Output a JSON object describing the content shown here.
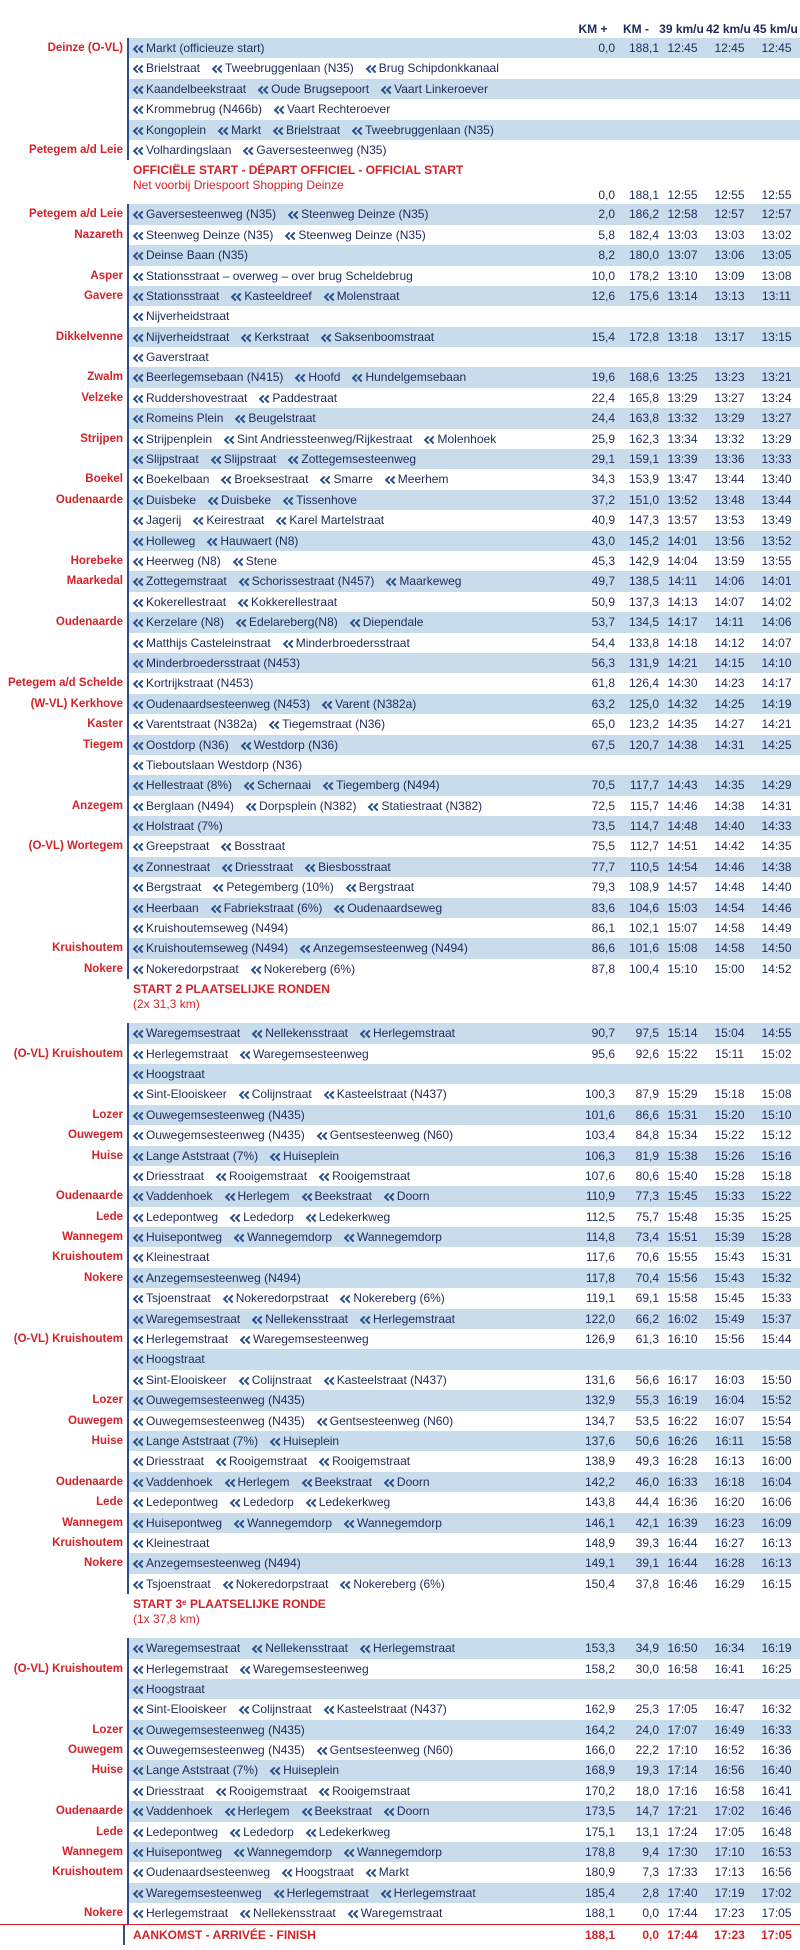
{
  "header": {
    "columns": [
      "KM +",
      "KM -",
      "39 km/u",
      "42 km/u",
      "45 km/u"
    ]
  },
  "rows": [
    {
      "place": "Deinze (O-VL)",
      "streets": [
        "Markt (officieuze start)"
      ],
      "km": [
        "0,0",
        "188,1",
        "12:45",
        "12:45",
        "12:45"
      ]
    },
    {
      "streets": [
        "Brielstraat",
        "Tweebruggenlaan (N35)",
        "Brug Schipdonkkanaal"
      ]
    },
    {
      "streets": [
        "Kaandelbeekstraat",
        "Oude Brugsepoort",
        "Vaart Linkeroever"
      ]
    },
    {
      "streets": [
        "Krommebrug (N466b)",
        "Vaart Rechteroever"
      ]
    },
    {
      "streets": [
        "Kongoplein",
        "Markt",
        "Brielstraat",
        "Tweebruggenlaan (N35)"
      ]
    },
    {
      "place": "Petegem a/d Leie",
      "streets": [
        "Volhardingslaan",
        "Gaversesteenweg (N35)"
      ]
    },
    {
      "kind": "note",
      "title": "OFFICIËLE START - DÉPART OFFICIEL - OFFICIAL START",
      "subtitle": "Net voorbij Driespoort Shopping Deinze",
      "km": [
        "0,0",
        "188,1",
        "12:55",
        "12:55",
        "12:55"
      ]
    },
    {
      "place": "Petegem a/d Leie",
      "streets": [
        "Gaversesteenweg (N35)",
        "Steenweg Deinze (N35)"
      ],
      "km": [
        "2,0",
        "186,2",
        "12:58",
        "12:57",
        "12:57"
      ]
    },
    {
      "place": "Nazareth",
      "streets": [
        "Steenweg Deinze (N35)",
        "Steenweg Deinze (N35)"
      ],
      "km": [
        "5,8",
        "182,4",
        "13:03",
        "13:03",
        "13:02"
      ]
    },
    {
      "streets": [
        "Deinse Baan (N35)"
      ],
      "km": [
        "8,2",
        "180,0",
        "13:07",
        "13:06",
        "13:05"
      ]
    },
    {
      "place": "Asper",
      "streets": [
        "Stationsstraat – overweg – over brug Scheldebrug"
      ],
      "km": [
        "10,0",
        "178,2",
        "13:10",
        "13:09",
        "13:08"
      ]
    },
    {
      "place": "Gavere",
      "streets": [
        "Stationsstraat",
        "Kasteeldreef",
        "Molenstraat"
      ],
      "km": [
        "12,6",
        "175,6",
        "13:14",
        "13:13",
        "13:11"
      ]
    },
    {
      "streets": [
        "Nijverheidstraat"
      ]
    },
    {
      "place": "Dikkelvenne",
      "streets": [
        "Nijverheidstraat",
        "Kerkstraat",
        "Saksenboomstraat"
      ],
      "km": [
        "15,4",
        "172,8",
        "13:18",
        "13:17",
        "13:15"
      ]
    },
    {
      "streets": [
        "Gaverstraat"
      ]
    },
    {
      "place": "Zwalm",
      "streets": [
        "Beerlegemsebaan (N415)",
        "Hoofd",
        "Hundelgemsebaan"
      ],
      "km": [
        "19,6",
        "168,6",
        "13:25",
        "13:23",
        "13:21"
      ]
    },
    {
      "place": "Velzeke",
      "streets": [
        "Ruddershovestraat",
        "Paddestraat"
      ],
      "km": [
        "22,4",
        "165,8",
        "13:29",
        "13:27",
        "13:24"
      ]
    },
    {
      "streets": [
        "Romeins Plein",
        "Beugelstraat"
      ],
      "km": [
        "24,4",
        "163,8",
        "13:32",
        "13:29",
        "13:27"
      ]
    },
    {
      "place": "Strijpen",
      "streets": [
        "Strijpenplein",
        "Sint Andriessteenweg/Rijkestraat",
        "Molenhoek"
      ],
      "km": [
        "25,9",
        "162,3",
        "13:34",
        "13:32",
        "13:29"
      ]
    },
    {
      "streets": [
        "Slijpstraat",
        "Slijpstraat",
        "Zottegemsesteenweg"
      ],
      "km": [
        "29,1",
        "159,1",
        "13:39",
        "13:36",
        "13:33"
      ]
    },
    {
      "place": "Boekel",
      "streets": [
        "Boekelbaan",
        "Broeksestraat",
        "Smarre",
        "Meerhem"
      ],
      "km": [
        "34,3",
        "153,9",
        "13:47",
        "13:44",
        "13:40"
      ]
    },
    {
      "place": "Oudenaarde",
      "streets": [
        "Duisbeke",
        "Duisbeke",
        "Tissenhove"
      ],
      "km": [
        "37,2",
        "151,0",
        "13:52",
        "13:48",
        "13:44"
      ]
    },
    {
      "streets": [
        "Jagerij",
        "Keirestraat",
        "Karel Martelstraat"
      ],
      "km": [
        "40,9",
        "147,3",
        "13:57",
        "13:53",
        "13:49"
      ]
    },
    {
      "streets": [
        "Holleweg",
        "Hauwaert (N8)"
      ],
      "km": [
        "43,0",
        "145,2",
        "14:01",
        "13:56",
        "13:52"
      ]
    },
    {
      "place": "Horebeke",
      "streets": [
        "Heerweg (N8)",
        "Stene"
      ],
      "km": [
        "45,3",
        "142,9",
        "14:04",
        "13:59",
        "13:55"
      ]
    },
    {
      "place": "Maarkedal",
      "streets": [
        "Zottegemstraat",
        "Schorissestraat (N457)",
        "Maarkeweg"
      ],
      "km": [
        "49,7",
        "138,5",
        "14:11",
        "14:06",
        "14:01"
      ]
    },
    {
      "streets": [
        "Kokerellestraat",
        "Kokkerellestraat"
      ],
      "km": [
        "50,9",
        "137,3",
        "14:13",
        "14:07",
        "14:02"
      ]
    },
    {
      "place": "Oudenaarde",
      "streets": [
        "Kerzelare (N8)",
        "Edelareberg(N8)",
        "Diependale"
      ],
      "km": [
        "53,7",
        "134,5",
        "14:17",
        "14:11",
        "14:06"
      ]
    },
    {
      "streets": [
        "Matthijs Casteleinstraat",
        "Minderbroedersstraat"
      ],
      "km": [
        "54,4",
        "133,8",
        "14:18",
        "14:12",
        "14:07"
      ]
    },
    {
      "streets": [
        "Minderbroedersstraat (N453)"
      ],
      "km": [
        "56,3",
        "131,9",
        "14:21",
        "14:15",
        "14:10"
      ]
    },
    {
      "place": "Petegem a/d Schelde",
      "streets": [
        "Kortrijkstraat (N453)"
      ],
      "km": [
        "61,8",
        "126,4",
        "14:30",
        "14:23",
        "14:17"
      ]
    },
    {
      "place": "(W-VL) Kerkhove",
      "streets": [
        "Oudenaardsesteenweg (N453)",
        "Varent (N382a)"
      ],
      "km": [
        "63,2",
        "125,0",
        "14:32",
        "14:25",
        "14:19"
      ]
    },
    {
      "place": "Kaster",
      "streets": [
        "Varentstraat (N382a)",
        "Tiegemstraat (N36)"
      ],
      "km": [
        "65,0",
        "123,2",
        "14:35",
        "14:27",
        "14:21"
      ]
    },
    {
      "place": "Tiegem",
      "streets": [
        "Oostdorp (N36)",
        "Westdorp (N36)"
      ],
      "km": [
        "67,5",
        "120,7",
        "14:38",
        "14:31",
        "14:25"
      ]
    },
    {
      "streets": [
        "Tieboutslaan Westdorp (N36)"
      ]
    },
    {
      "streets": [
        "Hellestraat (8%)",
        "Schernaai",
        "Tiegemberg (N494)"
      ],
      "km": [
        "70,5",
        "117,7",
        "14:43",
        "14:35",
        "14:29"
      ]
    },
    {
      "place": "Anzegem",
      "streets": [
        "Berglaan (N494)",
        "Dorpsplein (N382)",
        "Statiestraat (N382)"
      ],
      "km": [
        "72,5",
        "115,7",
        "14:46",
        "14:38",
        "14:31"
      ]
    },
    {
      "streets": [
        "Holstraat (7%)"
      ],
      "km": [
        "73,5",
        "114,7",
        "14:48",
        "14:40",
        "14:33"
      ]
    },
    {
      "place": "(O-VL) Wortegem",
      "streets": [
        "Greepstraat",
        "Bosstraat"
      ],
      "km": [
        "75,5",
        "112,7",
        "14:51",
        "14:42",
        "14:35"
      ]
    },
    {
      "streets": [
        "Zonnestraat",
        "Driesstraat",
        "Biesbosstraat"
      ],
      "km": [
        "77,7",
        "110,5",
        "14:54",
        "14:46",
        "14:38"
      ]
    },
    {
      "streets": [
        "Bergstraat",
        "Petegemberg (10%)",
        "Bergstraat"
      ],
      "km": [
        "79,3",
        "108,9",
        "14:57",
        "14:48",
        "14:40"
      ]
    },
    {
      "streets": [
        "Heerbaan",
        "Fabriekstraat (6%)",
        "Oudenaardseweg"
      ],
      "km": [
        "83,6",
        "104,6",
        "15:03",
        "14:54",
        "14:46"
      ]
    },
    {
      "streets": [
        "Kruishoutemseweg (N494)"
      ],
      "km": [
        "86,1",
        "102,1",
        "15:07",
        "14:58",
        "14:49"
      ]
    },
    {
      "place": "Kruishoutem",
      "streets": [
        "Kruishoutemseweg (N494)",
        "Anzegemsesteenweg (N494)"
      ],
      "km": [
        "86,6",
        "101,6",
        "15:08",
        "14:58",
        "14:50"
      ]
    },
    {
      "place": "Nokere",
      "streets": [
        "Nokeredorpstraat",
        "Nokereberg (6%)"
      ],
      "km": [
        "87,8",
        "100,4",
        "15:10",
        "15:00",
        "14:52"
      ]
    },
    {
      "kind": "note",
      "title": "START 2 PLAATSELIJKE RONDEN",
      "subtitle": "(2x 31,3 km)"
    },
    {
      "streets": [
        "Waregemsestraat",
        "Nellekensstraat",
        "Herlegemstraat"
      ],
      "km": [
        "90,7",
        "97,5",
        "15:14",
        "15:04",
        "14:55"
      ]
    },
    {
      "place": "(O-VL) Kruishoutem",
      "streets": [
        "Herlegemstraat",
        "Waregemsesteenweg"
      ],
      "km": [
        "95,6",
        "92,6",
        "15:22",
        "15:11",
        "15:02"
      ]
    },
    {
      "streets": [
        "Hoogstraat"
      ]
    },
    {
      "streets": [
        "Sint-Elooiskeer",
        "Colijnstraat",
        "Kasteelstraat (N437)"
      ],
      "km": [
        "100,3",
        "87,9",
        "15:29",
        "15:18",
        "15:08"
      ]
    },
    {
      "place": "Lozer",
      "streets": [
        "Ouwegemsesteenweg (N435)"
      ],
      "km": [
        "101,6",
        "86,6",
        "15:31",
        "15:20",
        "15:10"
      ]
    },
    {
      "place": "Ouwegem",
      "streets": [
        "Ouwegemsesteenweg (N435)",
        "Gentsesteenweg (N60)"
      ],
      "km": [
        "103,4",
        "84,8",
        "15:34",
        "15:22",
        "15:12"
      ]
    },
    {
      "place": "Huise",
      "streets": [
        "Lange Aststraat (7%)",
        "Huiseplein"
      ],
      "km": [
        "106,3",
        "81,9",
        "15:38",
        "15:26",
        "15:16"
      ]
    },
    {
      "streets": [
        "Driesstraat",
        "Rooigemstraat",
        "Rooigemstraat"
      ],
      "km": [
        "107,6",
        "80,6",
        "15:40",
        "15:28",
        "15:18"
      ]
    },
    {
      "place": "Oudenaarde",
      "streets": [
        "Vaddenhoek",
        "Herlegem",
        "Beekstraat",
        "Doorn"
      ],
      "km": [
        "110,9",
        "77,3",
        "15:45",
        "15:33",
        "15:22"
      ]
    },
    {
      "place": "Lede",
      "streets": [
        "Ledepontweg",
        "Lededorp",
        "Ledekerkweg"
      ],
      "km": [
        "112,5",
        "75,7",
        "15:48",
        "15:35",
        "15:25"
      ]
    },
    {
      "place": "Wannegem",
      "streets": [
        "Huisepontweg",
        "Wannegemdorp",
        "Wannegemdorp"
      ],
      "km": [
        "114,8",
        "73,4",
        "15:51",
        "15:39",
        "15:28"
      ]
    },
    {
      "place": "Kruishoutem",
      "streets": [
        "Kleinestraat"
      ],
      "km": [
        "117,6",
        "70,6",
        "15:55",
        "15:43",
        "15:31"
      ]
    },
    {
      "place": "Nokere",
      "streets": [
        "Anzegemsesteenweg (N494)"
      ],
      "km": [
        "117,8",
        "70,4",
        "15:56",
        "15:43",
        "15:32"
      ]
    },
    {
      "streets": [
        "Tsjoenstraat",
        "Nokeredorpstraat",
        "Nokereberg (6%)"
      ],
      "km": [
        "119,1",
        "69,1",
        "15:58",
        "15:45",
        "15:33"
      ]
    },
    {
      "streets": [
        "Waregemsestraat",
        "Nellekensstraat",
        "Herlegemstraat"
      ],
      "km": [
        "122,0",
        "66,2",
        "16:02",
        "15:49",
        "15:37"
      ]
    },
    {
      "place": "(O-VL) Kruishoutem",
      "streets": [
        "Herlegemstraat",
        "Waregemsesteenweg"
      ],
      "km": [
        "126,9",
        "61,3",
        "16:10",
        "15:56",
        "15:44"
      ]
    },
    {
      "streets": [
        "Hoogstraat"
      ]
    },
    {
      "streets": [
        "Sint-Elooiskeer",
        "Colijnstraat",
        "Kasteelstraat (N437)"
      ],
      "km": [
        "131,6",
        "56,6",
        "16:17",
        "16:03",
        "15:50"
      ]
    },
    {
      "place": "Lozer",
      "streets": [
        "Ouwegemsesteenweg (N435)"
      ],
      "km": [
        "132,9",
        "55,3",
        "16:19",
        "16:04",
        "15:52"
      ]
    },
    {
      "place": "Ouwegem",
      "streets": [
        "Ouwegemsesteenweg (N435)",
        "Gentsesteenweg (N60)"
      ],
      "km": [
        "134,7",
        "53,5",
        "16:22",
        "16:07",
        "15:54"
      ]
    },
    {
      "place": "Huise",
      "streets": [
        "Lange Aststraat (7%)",
        "Huiseplein"
      ],
      "km": [
        "137,6",
        "50,6",
        "16:26",
        "16:11",
        "15:58"
      ]
    },
    {
      "streets": [
        "Driesstraat",
        "Rooigemstraat",
        "Rooigemstraat"
      ],
      "km": [
        "138,9",
        "49,3",
        "16:28",
        "16:13",
        "16:00"
      ]
    },
    {
      "place": "Oudenaarde",
      "streets": [
        "Vaddenhoek",
        "Herlegem",
        "Beekstraat",
        "Doorn"
      ],
      "km": [
        "142,2",
        "46,0",
        "16:33",
        "16:18",
        "16:04"
      ]
    },
    {
      "place": "Lede",
      "streets": [
        "Ledepontweg",
        "Lededorp",
        "Ledekerkweg"
      ],
      "km": [
        "143,8",
        "44,4",
        "16:36",
        "16:20",
        "16:06"
      ]
    },
    {
      "place": "Wannegem",
      "streets": [
        "Huisepontweg",
        "Wannegemdorp",
        "Wannegemdorp"
      ],
      "km": [
        "146,1",
        "42,1",
        "16:39",
        "16:23",
        "16:09"
      ]
    },
    {
      "place": "Kruishoutem",
      "streets": [
        "Kleinestraat"
      ],
      "km": [
        "148,9",
        "39,3",
        "16:44",
        "16:27",
        "16:13"
      ]
    },
    {
      "place": "Nokere",
      "streets": [
        "Anzegemsesteenweg (N494)"
      ],
      "km": [
        "149,1",
        "39,1",
        "16:44",
        "16:28",
        "16:13"
      ]
    },
    {
      "streets": [
        "Tsjoenstraat",
        "Nokeredorpstraat",
        "Nokereberg (6%)"
      ],
      "km": [
        "150,4",
        "37,8",
        "16:46",
        "16:29",
        "16:15"
      ]
    },
    {
      "kind": "note",
      "title": "START 3ᵉ PLAATSELIJKE RONDE",
      "subtitle": "(1x 37,8 km)"
    },
    {
      "streets": [
        "Waregemsestraat",
        "Nellekensstraat",
        "Herlegemstraat"
      ],
      "km": [
        "153,3",
        "34,9",
        "16:50",
        "16:34",
        "16:19"
      ]
    },
    {
      "place": "(O-VL) Kruishoutem",
      "streets": [
        "Herlegemstraat",
        "Waregemsesteenweg"
      ],
      "km": [
        "158,2",
        "30,0",
        "16:58",
        "16:41",
        "16:25"
      ]
    },
    {
      "streets": [
        "Hoogstraat"
      ]
    },
    {
      "streets": [
        "Sint-Elooiskeer",
        "Colijnstraat",
        "Kasteelstraat (N437)"
      ],
      "km": [
        "162,9",
        "25,3",
        "17:05",
        "16:47",
        "16:32"
      ]
    },
    {
      "place": "Lozer",
      "streets": [
        "Ouwegemsesteenweg (N435)"
      ],
      "km": [
        "164,2",
        "24,0",
        "17:07",
        "16:49",
        "16:33"
      ]
    },
    {
      "place": "Ouwegem",
      "streets": [
        "Ouwegemsesteenweg (N435)",
        "Gentsesteenweg (N60)"
      ],
      "km": [
        "166,0",
        "22,2",
        "17:10",
        "16:52",
        "16:36"
      ]
    },
    {
      "place": "Huise",
      "streets": [
        "Lange Aststraat (7%)",
        "Huiseplein"
      ],
      "km": [
        "168,9",
        "19,3",
        "17:14",
        "16:56",
        "16:40"
      ]
    },
    {
      "streets": [
        "Driesstraat",
        "Rooigemstraat",
        "Rooigemstraat"
      ],
      "km": [
        "170,2",
        "18,0",
        "17:16",
        "16:58",
        "16:41"
      ]
    },
    {
      "place": "Oudenaarde",
      "streets": [
        "Vaddenhoek",
        "Herlegem",
        "Beekstraat",
        "Doorn"
      ],
      "km": [
        "173,5",
        "14,7",
        "17:21",
        "17:02",
        "16:46"
      ]
    },
    {
      "place": "Lede",
      "streets": [
        "Ledepontweg",
        "Lededorp",
        "Ledekerkweg"
      ],
      "km": [
        "175,1",
        "13,1",
        "17:24",
        "17:05",
        "16:48"
      ]
    },
    {
      "place": "Wannegem",
      "streets": [
        "Huisepontweg",
        "Wannegemdorp",
        "Wannegemdorp"
      ],
      "km": [
        "178,8",
        "9,4",
        "17:30",
        "17:10",
        "16:53"
      ]
    },
    {
      "place": "Kruishoutem",
      "streets": [
        "Oudenaardsesteenweg",
        "Hoogstraat",
        "Markt"
      ],
      "km": [
        "180,9",
        "7,3",
        "17:33",
        "17:13",
        "16:56"
      ]
    },
    {
      "streets": [
        "Waregemsesteenweg",
        "Herlegemstraat",
        "Herlegemstraat"
      ],
      "km": [
        "185,4",
        "2,8",
        "17:40",
        "17:19",
        "17:02"
      ]
    },
    {
      "place": "Nokere",
      "streets": [
        "Herlegemstraat",
        "Nellekensstraat",
        "Waregemstraat"
      ],
      "km": [
        "188,1",
        "0,0",
        "17:44",
        "17:23",
        "17:05"
      ]
    },
    {
      "kind": "finish",
      "title": "AANKOMST - ARRIVÉE - FINISH",
      "km": [
        "188,1",
        "0,0",
        "17:44",
        "17:23",
        "17:05"
      ]
    }
  ]
}
